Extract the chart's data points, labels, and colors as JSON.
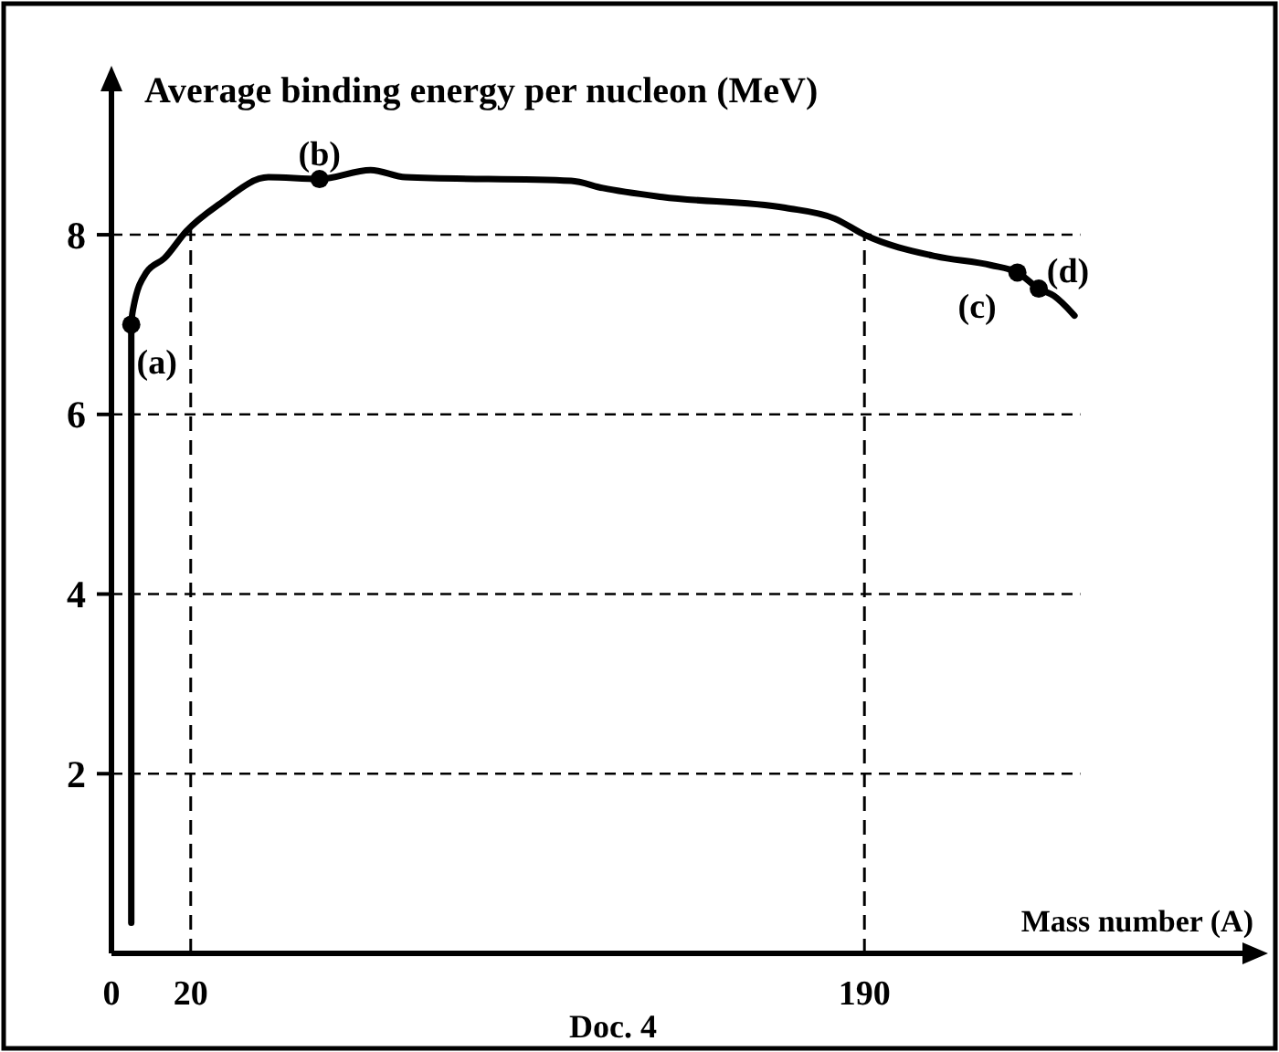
{
  "chart_data": {
    "type": "line",
    "ylabel": "Average binding energy per nucleon (MeV)",
    "xlabel": "Mass number (A)",
    "xlim": [
      0,
      290
    ],
    "ylim": [
      0,
      9.8
    ],
    "xticks": [
      0,
      20,
      190
    ],
    "yticks": [
      2,
      4,
      6,
      8
    ],
    "grid": "y",
    "series": [
      {
        "color": "#000000",
        "marker": "none",
        "x": [
          5,
          5,
          5.5,
          8.8,
          13.4,
          18.9,
          27.2,
          39.6,
          52.5,
          65.4,
          74.2,
          116,
          124,
          139,
          170,
          182.5,
          190,
          208,
          222,
          228.6,
          234,
          237.8,
          243
        ],
        "values": [
          0.34,
          7.0,
          7.18,
          7.58,
          7.74,
          8.04,
          8.34,
          8.64,
          8.62,
          8.72,
          8.64,
          8.6,
          8.52,
          8.42,
          8.3,
          8.18,
          8.0,
          7.76,
          7.66,
          7.58,
          7.4,
          7.32,
          7.1
        ]
      },
      {
        "type": "scatter",
        "color": "#000000",
        "marker": "circle",
        "x": [
          5,
          52.5,
          228.6,
          234
        ],
        "values": [
          7.0,
          8.62,
          7.58,
          7.4
        ]
      }
    ],
    "ref_lines": [
      {
        "axis": "x",
        "value": 20
      },
      {
        "axis": "x",
        "value": 190
      }
    ],
    "annotations": [
      {
        "text": "(a)",
        "x": 5,
        "y": 7.0
      },
      {
        "text": "(b)",
        "x": 52.5,
        "y": 8.62
      },
      {
        "text": "(c)",
        "x": 228.6,
        "y": 7.58
      },
      {
        "text": "(d)",
        "x": 234,
        "y": 7.4
      },
      "Doc. 4"
    ]
  }
}
